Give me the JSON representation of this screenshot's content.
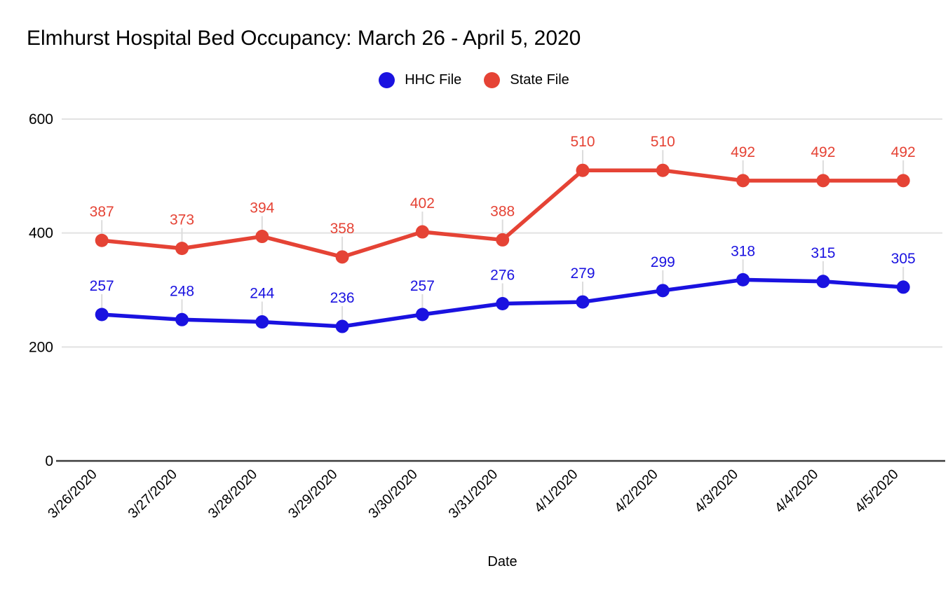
{
  "title": "Elmhurst Hospital Bed Occupancy: March 26 - April 5, 2020",
  "chart_data": {
    "type": "line",
    "title": "Elmhurst Hospital Bed Occupancy: March 26 - April 5, 2020",
    "xlabel": "Date",
    "ylabel": "",
    "categories": [
      "3/26/2020",
      "3/27/2020",
      "3/28/2020",
      "3/29/2020",
      "3/30/2020",
      "3/31/2020",
      "4/1/2020",
      "4/2/2020",
      "4/3/2020",
      "4/4/2020",
      "4/5/2020"
    ],
    "series": [
      {
        "name": "HHC File",
        "color": "#1a12e0",
        "values": [
          257,
          248,
          244,
          236,
          257,
          276,
          279,
          299,
          318,
          315,
          305
        ]
      },
      {
        "name": "State File",
        "color": "#e54335",
        "values": [
          387,
          373,
          394,
          358,
          402,
          388,
          510,
          510,
          492,
          492,
          492
        ]
      }
    ],
    "ylim": [
      0,
      600
    ],
    "yticks": [
      0,
      200,
      400,
      600
    ],
    "grid": true,
    "legend_position": "top-center",
    "data_labels": true
  },
  "colors": {
    "background": "#ffffff",
    "gridline": "#e2e2e2",
    "axis_line": "#3c3c3c",
    "label_stem": "#dcdcdc",
    "text": "#000000"
  }
}
